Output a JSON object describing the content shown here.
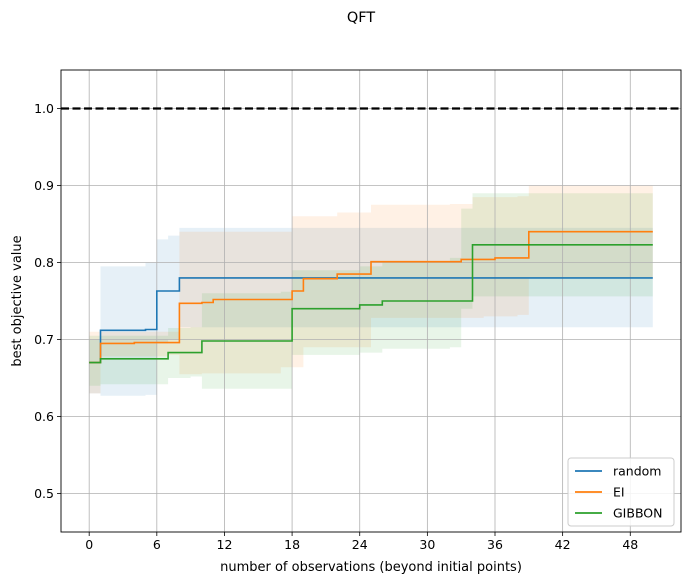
{
  "chart_data": {
    "type": "line",
    "title": "QFT",
    "xlabel": "number of observations (beyond initial points)",
    "ylabel": "best objective value",
    "xlim": [
      -2.5,
      52.5
    ],
    "ylim": [
      0.45,
      1.05
    ],
    "xticks": [
      0,
      6,
      12,
      18,
      24,
      30,
      36,
      42,
      48
    ],
    "yticks": [
      0.5,
      0.6,
      0.7,
      0.8,
      0.9,
      1.0
    ],
    "xtick_labels": [
      "0",
      "6",
      "12",
      "18",
      "24",
      "30",
      "36",
      "42",
      "48"
    ],
    "ytick_labels": [
      "0.5",
      "0.6",
      "0.7",
      "0.8",
      "0.9",
      "1.0"
    ],
    "grid": true,
    "legend_position": "lower right",
    "reference_line": {
      "y": 1.0,
      "style": "dashed",
      "color": "#000000"
    },
    "series": [
      {
        "name": "random",
        "color": "#1f77b4",
        "steps": [
          [
            0,
            0.67
          ],
          [
            1,
            0.712
          ],
          [
            5,
            0.713
          ],
          [
            6,
            0.763
          ],
          [
            7,
            0.763
          ],
          [
            8,
            0.78
          ],
          [
            50,
            0.78
          ]
        ],
        "band_upper": [
          [
            0,
            0.7
          ],
          [
            1,
            0.795
          ],
          [
            5,
            0.8
          ],
          [
            6,
            0.83
          ],
          [
            7,
            0.835
          ],
          [
            8,
            0.845
          ],
          [
            50,
            0.845
          ]
        ],
        "band_lower": [
          [
            0,
            0.63
          ],
          [
            1,
            0.627
          ],
          [
            5,
            0.628
          ],
          [
            6,
            0.695
          ],
          [
            7,
            0.7
          ],
          [
            8,
            0.716
          ],
          [
            50,
            0.716
          ]
        ]
      },
      {
        "name": "EI",
        "color": "#ff7f0e",
        "steps": [
          [
            0,
            0.67
          ],
          [
            1,
            0.695
          ],
          [
            3,
            0.695
          ],
          [
            4,
            0.696
          ],
          [
            7,
            0.696
          ],
          [
            8,
            0.747
          ],
          [
            10,
            0.748
          ],
          [
            11,
            0.752
          ],
          [
            17,
            0.752
          ],
          [
            18,
            0.763
          ],
          [
            19,
            0.779
          ],
          [
            22,
            0.785
          ],
          [
            24,
            0.785
          ],
          [
            25,
            0.801
          ],
          [
            32,
            0.801
          ],
          [
            33,
            0.804
          ],
          [
            35,
            0.804
          ],
          [
            36,
            0.806
          ],
          [
            38,
            0.806
          ],
          [
            39,
            0.84
          ],
          [
            50,
            0.84
          ]
        ],
        "band_upper": [
          [
            0,
            0.71
          ],
          [
            1,
            0.71
          ],
          [
            7,
            0.71
          ],
          [
            8,
            0.84
          ],
          [
            17,
            0.84
          ],
          [
            18,
            0.86
          ],
          [
            22,
            0.865
          ],
          [
            25,
            0.875
          ],
          [
            32,
            0.876
          ],
          [
            34,
            0.885
          ],
          [
            38,
            0.886
          ],
          [
            39,
            0.9
          ],
          [
            50,
            0.9
          ]
        ],
        "band_lower": [
          [
            0,
            0.63
          ],
          [
            1,
            0.678
          ],
          [
            7,
            0.68
          ],
          [
            8,
            0.655
          ],
          [
            10,
            0.656
          ],
          [
            17,
            0.664
          ],
          [
            19,
            0.69
          ],
          [
            25,
            0.728
          ],
          [
            32,
            0.728
          ],
          [
            35,
            0.73
          ],
          [
            38,
            0.732
          ],
          [
            39,
            0.78
          ],
          [
            50,
            0.78
          ]
        ]
      },
      {
        "name": "GIBBON",
        "color": "#2ca02c",
        "steps": [
          [
            0,
            0.67
          ],
          [
            1,
            0.675
          ],
          [
            6,
            0.675
          ],
          [
            7,
            0.683
          ],
          [
            9,
            0.683
          ],
          [
            10,
            0.698
          ],
          [
            17,
            0.698
          ],
          [
            18,
            0.74
          ],
          [
            23,
            0.74
          ],
          [
            24,
            0.745
          ],
          [
            25,
            0.745
          ],
          [
            26,
            0.75
          ],
          [
            32,
            0.75
          ],
          [
            34,
            0.823
          ],
          [
            50,
            0.823
          ]
        ],
        "band_upper": [
          [
            0,
            0.705
          ],
          [
            1,
            0.705
          ],
          [
            6,
            0.705
          ],
          [
            7,
            0.715
          ],
          [
            9,
            0.716
          ],
          [
            10,
            0.76
          ],
          [
            17,
            0.762
          ],
          [
            18,
            0.79
          ],
          [
            24,
            0.795
          ],
          [
            26,
            0.8
          ],
          [
            32,
            0.806
          ],
          [
            33,
            0.87
          ],
          [
            34,
            0.89
          ],
          [
            50,
            0.89
          ]
        ],
        "band_lower": [
          [
            0,
            0.64
          ],
          [
            1,
            0.642
          ],
          [
            6,
            0.642
          ],
          [
            7,
            0.65
          ],
          [
            9,
            0.652
          ],
          [
            10,
            0.636
          ],
          [
            17,
            0.636
          ],
          [
            18,
            0.68
          ],
          [
            24,
            0.683
          ],
          [
            26,
            0.688
          ],
          [
            32,
            0.69
          ],
          [
            33,
            0.74
          ],
          [
            34,
            0.756
          ],
          [
            50,
            0.756
          ]
        ]
      }
    ]
  }
}
